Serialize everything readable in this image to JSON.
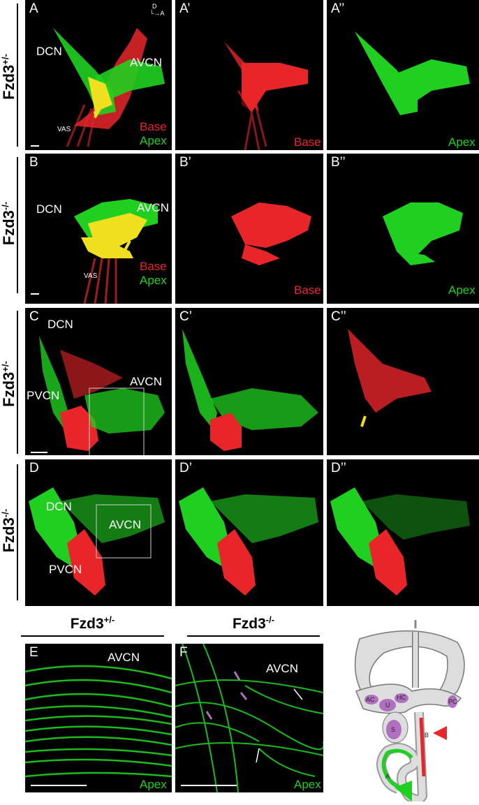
{
  "rows": [
    {
      "genotype": "Fzd3",
      "genotype_sup": "+/-",
      "panels": [
        {
          "letter": "A",
          "labels": [
            "DCN",
            "AVCN",
            "VAS"
          ],
          "legend": [
            "Base",
            "Apex"
          ]
        },
        {
          "letter": "A’",
          "legend": [
            "Base"
          ]
        },
        {
          "letter": "A’’",
          "legend": [
            "Apex"
          ]
        }
      ]
    },
    {
      "genotype": "Fzd3",
      "genotype_sup": "-/-",
      "panels": [
        {
          "letter": "B",
          "labels": [
            "DCN",
            "AVCN",
            "VAS"
          ],
          "legend": [
            "Base",
            "Apex"
          ]
        },
        {
          "letter": "B’",
          "legend": [
            "Base"
          ]
        },
        {
          "letter": "B’’",
          "legend": [
            "Apex"
          ]
        }
      ]
    },
    {
      "genotype": "Fzd3",
      "genotype_sup": "+/-",
      "panels": [
        {
          "letter": "C",
          "labels": [
            "DCN",
            "PVCN",
            "AVCN"
          ]
        },
        {
          "letter": "C’"
        },
        {
          "letter": "C’’"
        }
      ]
    },
    {
      "genotype": "Fzd3",
      "genotype_sup": "-/-",
      "panels": [
        {
          "letter": "D",
          "labels": [
            "DCN",
            "AVCN",
            "PVCN"
          ]
        },
        {
          "letter": "D’"
        },
        {
          "letter": "D’’"
        }
      ]
    }
  ],
  "axes_indicator": {
    "dorsal": "D",
    "anterior": "A"
  },
  "bottom": {
    "E": {
      "header": "Fzd3",
      "header_sup": "+/-",
      "letter": "E",
      "label": "AVCN",
      "legend": "Apex"
    },
    "F": {
      "header": "Fzd3",
      "header_sup": "-/-",
      "letter": "F",
      "label": "AVCN",
      "legend": "Apex"
    }
  },
  "diagram": {
    "labels": [
      "AC",
      "HC",
      "U",
      "PC",
      "S",
      "B",
      "A"
    ]
  },
  "colors": {
    "red": "#e8262a",
    "green": "#20d020",
    "yellow": "#f0e020",
    "purple": "#b070c0"
  }
}
